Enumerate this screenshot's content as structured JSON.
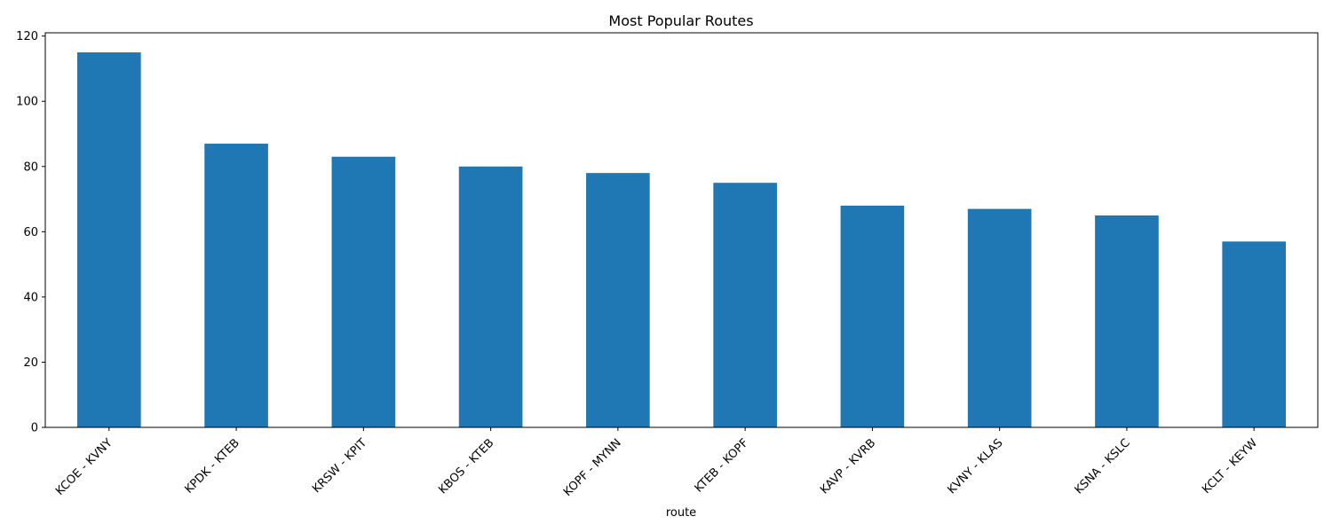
{
  "chart_data": {
    "type": "bar",
    "title": "Most Popular Routes",
    "xlabel": "route",
    "ylabel": "",
    "categories": [
      "KCOE - KVNY",
      "KPDK - KTEB",
      "KRSW - KPIT",
      "KBOS - KTEB",
      "KOPF - MYNN",
      "KTEB - KOPF",
      "KAVP - KVRB",
      "KVNY - KLAS",
      "KSNA - KSLC",
      "KCLT - KEYW"
    ],
    "values": [
      115,
      87,
      83,
      80,
      78,
      75,
      68,
      67,
      65,
      57
    ],
    "ylim": [
      0,
      121
    ],
    "yticks": [
      0,
      20,
      40,
      60,
      80,
      100,
      120
    ],
    "bar_color": "#1f77b4",
    "grid": false,
    "legend": "none"
  }
}
